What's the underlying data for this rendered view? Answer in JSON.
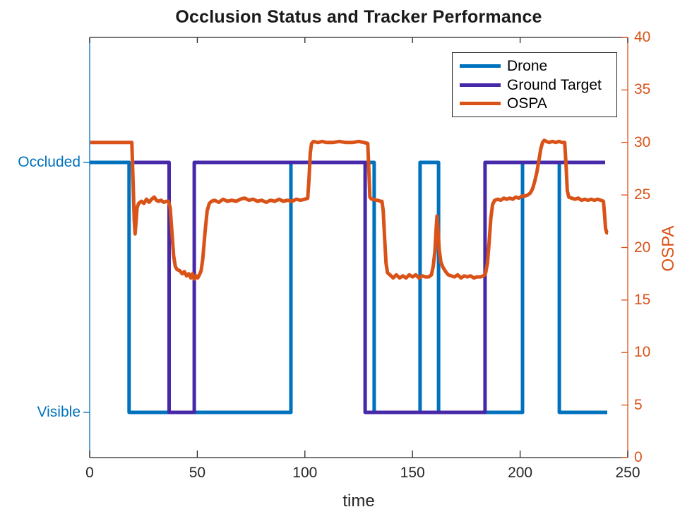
{
  "figure": {
    "title": "Occlusion Status and Tracker Performance",
    "xlabel": "time",
    "right_ylabel": "OSPA"
  },
  "colors": {
    "drone": "#0072BD",
    "ground_target": "#4628A8",
    "ospa": "#D95319",
    "axis_dark": "#262626",
    "left_axis": "#0072BD",
    "right_axis": "#D95319"
  },
  "legend": {
    "items": [
      {
        "label": "Drone",
        "color": "#0072BD"
      },
      {
        "label": "Ground Target",
        "color": "#4628A8"
      },
      {
        "label": "OSPA",
        "color": "#D95319"
      }
    ]
  },
  "chart_data": {
    "type": "line",
    "title": "Occlusion Status and Tracker Performance",
    "xlabel": "time",
    "x_range": [
      0,
      250
    ],
    "x_ticks": [
      0,
      50,
      100,
      150,
      200,
      250
    ],
    "grid": false,
    "legend_position": "upper-right",
    "left_axis": {
      "kind": "categorical",
      "color": "#0072BD",
      "levels": [
        {
          "label": "Occluded",
          "value": 28.1
        },
        {
          "label": "Visible",
          "value": 4.3
        }
      ]
    },
    "right_axis": {
      "label": "OSPA",
      "color": "#D95319",
      "range": [
        0,
        40
      ],
      "ticks": [
        0,
        5,
        10,
        15,
        20,
        25,
        30,
        35,
        40
      ]
    },
    "series": [
      {
        "name": "Drone",
        "kind": "step",
        "color": "#0072BD",
        "axis": "left",
        "end_t": 240.5,
        "transitions": [
          {
            "t": 0,
            "level": "Occluded"
          },
          {
            "t": 18.3,
            "level": "Visible"
          },
          {
            "t": 93.5,
            "level": "Occluded"
          },
          {
            "t": 132.2,
            "level": "Visible"
          },
          {
            "t": 153.5,
            "level": "Occluded"
          },
          {
            "t": 162.1,
            "level": "Visible"
          },
          {
            "t": 201.1,
            "level": "Occluded"
          },
          {
            "t": 218.2,
            "level": "Visible"
          }
        ]
      },
      {
        "name": "Ground Target",
        "kind": "step",
        "color": "#4628A8",
        "axis": "left",
        "end_t": 239.5,
        "transitions": [
          {
            "t": 20.7,
            "level": "Occluded"
          },
          {
            "t": 36.9,
            "level": "Visible"
          },
          {
            "t": 48.6,
            "level": "Occluded"
          },
          {
            "t": 128.0,
            "level": "Visible"
          },
          {
            "t": 183.7,
            "level": "Occluded"
          }
        ]
      },
      {
        "name": "OSPA",
        "kind": "line",
        "color": "#D95319",
        "axis": "right",
        "points": [
          [
            0.3,
            30
          ],
          [
            4,
            30
          ],
          [
            8,
            30
          ],
          [
            12,
            30
          ],
          [
            16,
            30
          ],
          [
            19.6,
            30
          ],
          [
            20.2,
            26
          ],
          [
            20.7,
            22.6
          ],
          [
            21.1,
            21.3
          ],
          [
            21.5,
            22.3
          ],
          [
            22,
            23.8
          ],
          [
            22.8,
            24.2
          ],
          [
            24,
            24.4
          ],
          [
            25.2,
            24.2
          ],
          [
            26.4,
            24.6
          ],
          [
            27.6,
            24.3
          ],
          [
            28.8,
            24.6
          ],
          [
            30,
            24.8
          ],
          [
            31,
            24.5
          ],
          [
            32,
            24.4
          ],
          [
            33.2,
            24.5
          ],
          [
            34.4,
            24.3
          ],
          [
            35.6,
            24.4
          ],
          [
            36.6,
            24.4
          ],
          [
            37.4,
            23.8
          ],
          [
            38.2,
            21.5
          ],
          [
            39,
            19.2
          ],
          [
            39.8,
            18.2
          ],
          [
            40.6,
            17.9
          ],
          [
            41.8,
            17.8
          ],
          [
            43,
            17.5
          ],
          [
            44,
            17.7
          ],
          [
            45,
            17.3
          ],
          [
            46,
            17.5
          ],
          [
            47,
            17.1
          ],
          [
            47.8,
            17.5
          ],
          [
            48.6,
            17.0
          ],
          [
            49.4,
            17.3
          ],
          [
            50.2,
            17.1
          ],
          [
            51,
            17.4
          ],
          [
            51.8,
            17.8
          ],
          [
            52.6,
            19
          ],
          [
            53.6,
            21.5
          ],
          [
            54.6,
            23.5
          ],
          [
            55.6,
            24.2
          ],
          [
            56.6,
            24.4
          ],
          [
            58,
            24.5
          ],
          [
            60,
            24.3
          ],
          [
            62,
            24.6
          ],
          [
            64,
            24.4
          ],
          [
            66,
            24.5
          ],
          [
            68,
            24.4
          ],
          [
            70,
            24.6
          ],
          [
            72,
            24.7
          ],
          [
            74,
            24.5
          ],
          [
            76,
            24.6
          ],
          [
            78,
            24.4
          ],
          [
            80,
            24.5
          ],
          [
            82,
            24.3
          ],
          [
            84,
            24.5
          ],
          [
            86,
            24.4
          ],
          [
            88,
            24.6
          ],
          [
            90,
            24.4
          ],
          [
            92,
            24.5
          ],
          [
            94,
            24.4
          ],
          [
            96,
            24.6
          ],
          [
            98,
            24.5
          ],
          [
            100,
            24.6
          ],
          [
            101.3,
            24.7
          ],
          [
            101.9,
            26.5
          ],
          [
            102.5,
            29
          ],
          [
            103.1,
            29.9
          ],
          [
            104,
            30.1
          ],
          [
            106,
            30.0
          ],
          [
            108,
            30.1
          ],
          [
            110,
            30.0
          ],
          [
            113,
            30.0
          ],
          [
            116,
            30.1
          ],
          [
            119,
            30.0
          ],
          [
            122,
            30.0
          ],
          [
            125,
            30.1
          ],
          [
            127.5,
            30.0
          ],
          [
            129.2,
            29.9
          ],
          [
            129.7,
            27.5
          ],
          [
            130.2,
            24.8
          ],
          [
            131,
            24.6
          ],
          [
            132,
            24.6
          ],
          [
            133,
            24.5
          ],
          [
            134,
            24.5
          ],
          [
            135,
            24.4
          ],
          [
            135.8,
            24.4
          ],
          [
            136.4,
            23.5
          ],
          [
            137,
            21
          ],
          [
            137.7,
            18.5
          ],
          [
            138.4,
            17.6
          ],
          [
            139.5,
            17.4
          ],
          [
            141,
            17.1
          ],
          [
            142.5,
            17.4
          ],
          [
            144,
            17.1
          ],
          [
            145.5,
            17.3
          ],
          [
            147,
            17.1
          ],
          [
            148.5,
            17.4
          ],
          [
            150,
            17.2
          ],
          [
            151.5,
            17.4
          ],
          [
            153,
            17.1
          ],
          [
            154.5,
            17.3
          ],
          [
            156,
            17.2
          ],
          [
            157.5,
            17.2
          ],
          [
            158.8,
            17.4
          ],
          [
            159.6,
            18.2
          ],
          [
            160.4,
            19.6
          ],
          [
            161,
            21.8
          ],
          [
            161.4,
            23.0
          ],
          [
            161.8,
            21.8
          ],
          [
            162.4,
            19.8
          ],
          [
            163.2,
            18.6
          ],
          [
            164.2,
            18.1
          ],
          [
            165.4,
            17.7
          ],
          [
            166.6,
            17.4
          ],
          [
            168,
            17.3
          ],
          [
            169.5,
            17.2
          ],
          [
            171,
            17.4
          ],
          [
            172.5,
            17.1
          ],
          [
            174,
            17.3
          ],
          [
            175.5,
            17.2
          ],
          [
            177,
            17.3
          ],
          [
            178.5,
            17.1
          ],
          [
            180,
            17.2
          ],
          [
            181.5,
            17.2
          ],
          [
            183,
            17.3
          ],
          [
            183.9,
            17.5
          ],
          [
            184.8,
            18.5
          ],
          [
            185.6,
            20.5
          ],
          [
            186.4,
            22.8
          ],
          [
            187.2,
            24.1
          ],
          [
            188.2,
            24.5
          ],
          [
            189.6,
            24.6
          ],
          [
            191,
            24.5
          ],
          [
            192.4,
            24.7
          ],
          [
            193.8,
            24.6
          ],
          [
            195.2,
            24.7
          ],
          [
            196.6,
            24.6
          ],
          [
            198,
            24.8
          ],
          [
            199.4,
            24.7
          ],
          [
            200.8,
            24.9
          ],
          [
            202.2,
            24.9
          ],
          [
            203.6,
            25.0
          ],
          [
            204.8,
            25.2
          ],
          [
            205.8,
            25.6
          ],
          [
            206.8,
            26.3
          ],
          [
            207.8,
            27.2
          ],
          [
            208.8,
            28.4
          ],
          [
            209.6,
            29.4
          ],
          [
            210.4,
            30.0
          ],
          [
            211.2,
            30.2
          ],
          [
            212.2,
            30.1
          ],
          [
            213.5,
            30.0
          ],
          [
            215,
            30.1
          ],
          [
            216.5,
            30.0
          ],
          [
            218,
            30.1
          ],
          [
            219.5,
            30.0
          ],
          [
            220.7,
            30.0
          ],
          [
            221.3,
            28.0
          ],
          [
            221.9,
            25.4
          ],
          [
            222.6,
            24.8
          ],
          [
            224,
            24.7
          ],
          [
            225.5,
            24.6
          ],
          [
            227,
            24.7
          ],
          [
            228.5,
            24.5
          ],
          [
            230,
            24.6
          ],
          [
            231.5,
            24.5
          ],
          [
            233,
            24.6
          ],
          [
            234.5,
            24.5
          ],
          [
            236,
            24.6
          ],
          [
            237.5,
            24.5
          ],
          [
            238.7,
            24.4
          ],
          [
            239.2,
            23.2
          ],
          [
            239.7,
            21.8
          ],
          [
            240.3,
            21.4
          ],
          [
            240.8,
            21.4
          ]
        ]
      }
    ]
  }
}
